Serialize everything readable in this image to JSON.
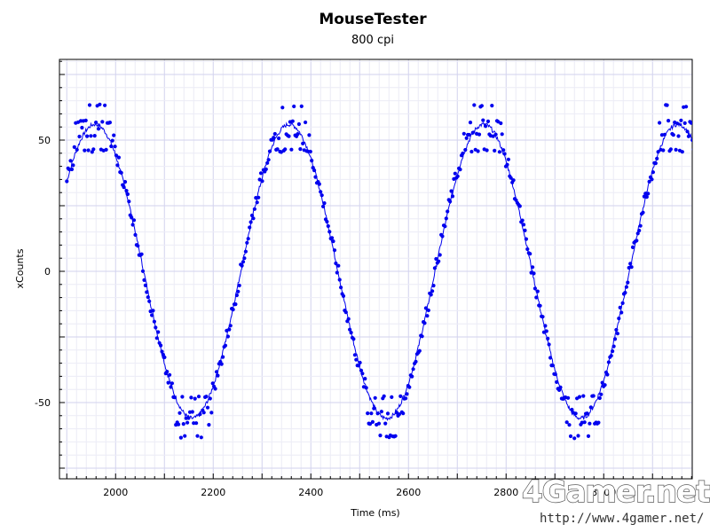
{
  "chart_data": {
    "type": "scatter",
    "title": "MouseTester",
    "subtitle": "800 cpi",
    "xlabel": "Time (ms)",
    "ylabel": "xCounts",
    "xlim": [
      1900,
      3190
    ],
    "ylim": [
      -80,
      80
    ],
    "x_ticks": [
      2000,
      2200,
      2400,
      2600,
      2800,
      3000
    ],
    "y_ticks": [
      50,
      0,
      -50
    ],
    "grid": true,
    "point_color": "#0000ee",
    "line_color": "#0000ee",
    "series": [
      {
        "style": "points",
        "sine_fit": {
          "amplitude": 57,
          "period": 398,
          "peak_x": 1958,
          "x_start": 1900,
          "x_end": 3190
        },
        "extreme_cluster_values": [
          -63,
          -58,
          -54,
          -48,
          46,
          52,
          57,
          63
        ]
      },
      {
        "style": "line",
        "sine_fit": {
          "amplitude": 56,
          "period": 398,
          "peak_x": 1958,
          "x_start": 1900,
          "x_end": 3190
        }
      }
    ]
  },
  "watermark": {
    "logo_text": "4Gamer.net",
    "url": "http://www.4gamer.net/"
  }
}
